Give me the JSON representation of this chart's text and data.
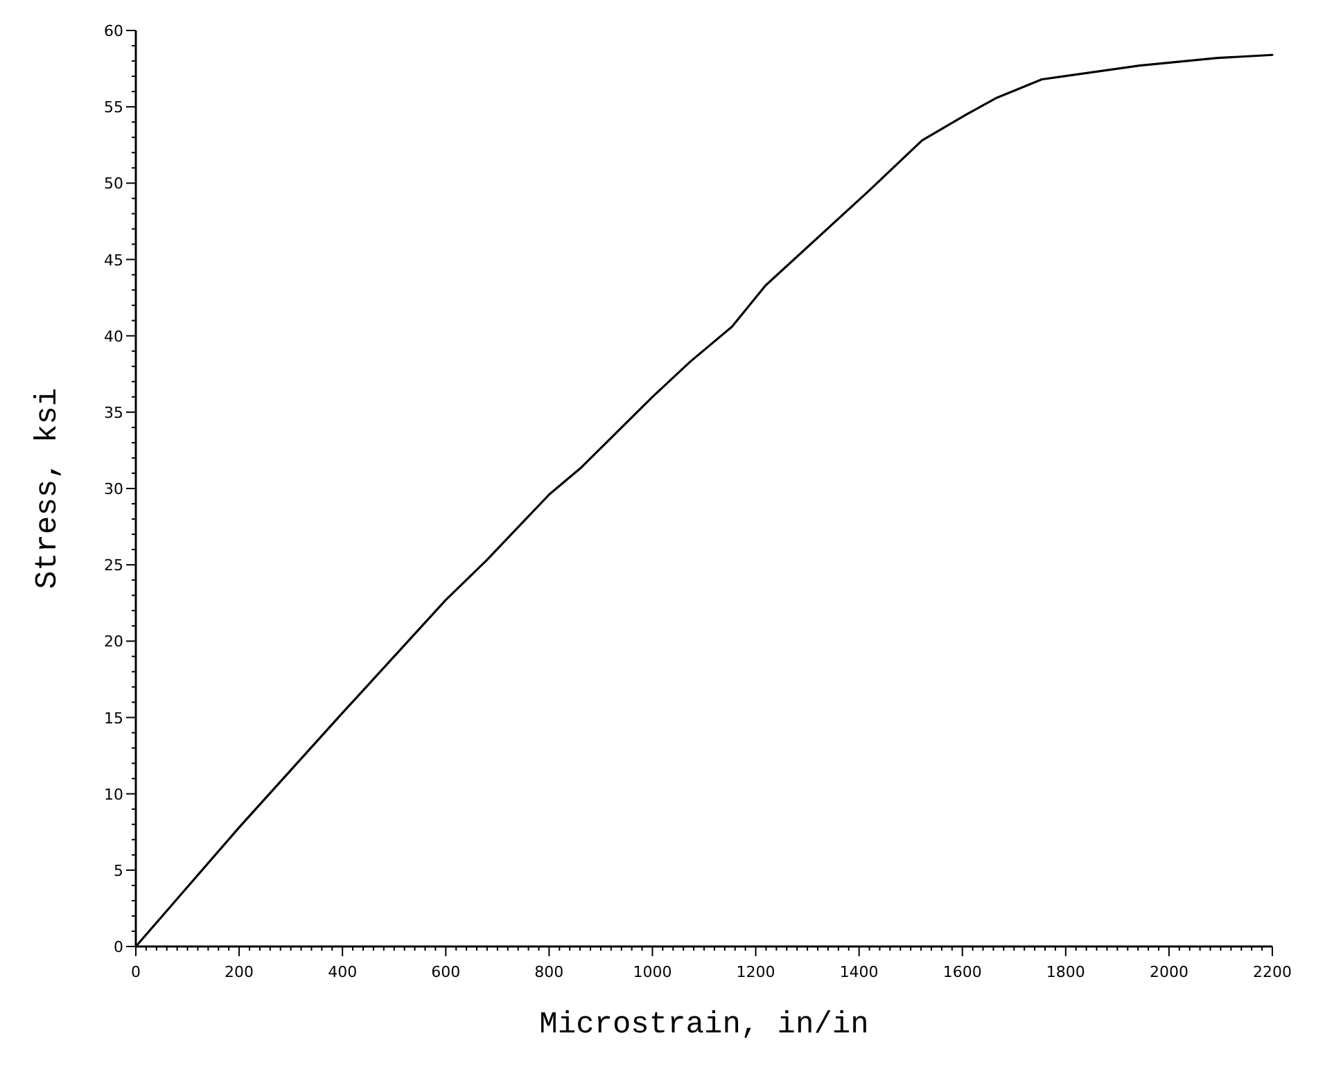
{
  "chart_data": {
    "type": "line",
    "xlabel": "Microstrain, in/in",
    "ylabel": "Stress, ksi",
    "xlim": [
      0,
      2200
    ],
    "ylim": [
      0,
      60
    ],
    "xticks": [
      0,
      200,
      400,
      600,
      800,
      1000,
      1200,
      1400,
      1600,
      1800,
      2000,
      2200
    ],
    "yticks": [
      0,
      5,
      10,
      15,
      20,
      25,
      30,
      35,
      40,
      45,
      50,
      55,
      60
    ],
    "grid": false,
    "marker": "none",
    "line_style": "solid",
    "series": [
      {
        "color": "#000000",
        "x": [
          0,
          200,
          400,
          600,
          679,
          800,
          863,
          1000,
          1073,
          1154,
          1219,
          1419,
          1522,
          1608,
          1667,
          1754,
          1943,
          2094,
          2200
        ],
        "values": [
          0,
          7.8,
          15.3,
          22.7,
          25.3,
          29.6,
          31.4,
          36,
          38.3,
          40.6,
          43.3,
          49.5,
          52.8,
          54.5,
          55.6,
          56.8,
          57.7,
          58.2,
          58.4
        ]
      }
    ]
  }
}
